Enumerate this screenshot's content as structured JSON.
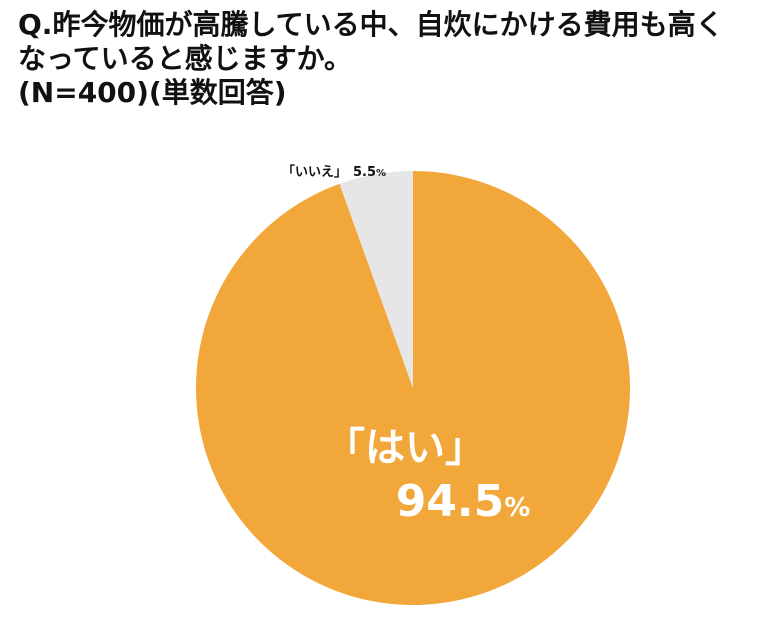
{
  "title": {
    "line1": "Q.昨今物価が高騰している中、自炊にかける費用も高く",
    "line2": "なっていると感じますか。",
    "line3": "(N=400)(単数回答)"
  },
  "chart_data": {
    "type": "pie",
    "categories": [
      "「はい」",
      "「いいえ」"
    ],
    "values": [
      94.5,
      5.5
    ],
    "unit": "%",
    "colors": [
      "#f2a73b",
      "#e6e6e6"
    ],
    "start": "12 o'clock, clockwise"
  },
  "labels": {
    "yes_name": "「はい」",
    "yes_value": "94.5",
    "no_name": "「いいえ」",
    "no_value": "5.5",
    "unit": "%"
  }
}
